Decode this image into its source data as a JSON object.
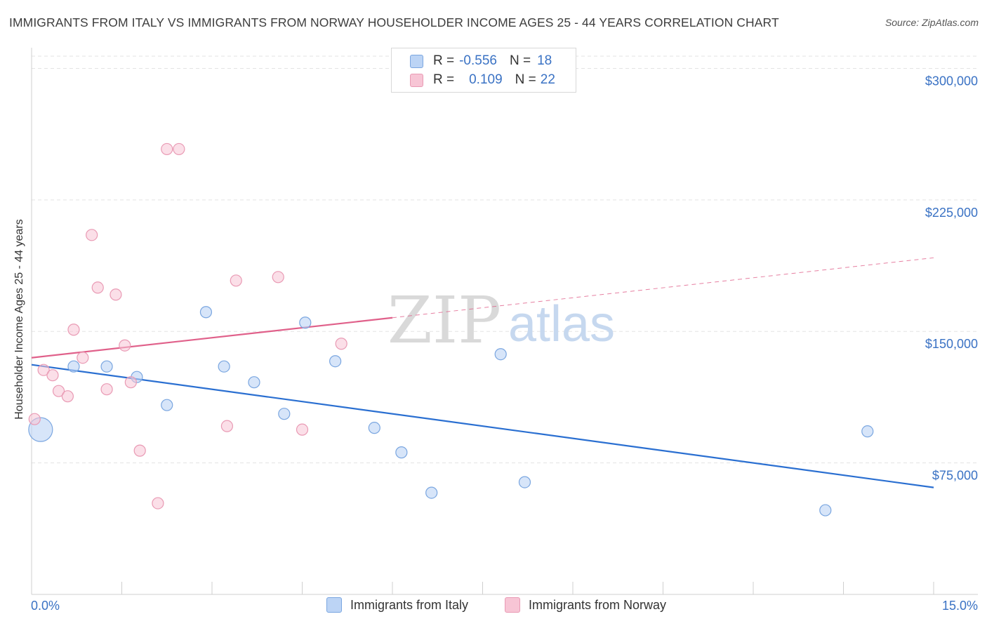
{
  "title": "IMMIGRANTS FROM ITALY VS IMMIGRANTS FROM NORWAY HOUSEHOLDER INCOME AGES 25 - 44 YEARS CORRELATION CHART",
  "source": "Source: ZipAtlas.com",
  "watermark": {
    "zip": "ZIP",
    "atlas": "atlas"
  },
  "legend": {
    "italy": {
      "r_label": "R =",
      "r_value": "-0.556",
      "n_label": "N =",
      "n_value": "18"
    },
    "norway": {
      "r_label": "R =",
      "r_value": "0.109",
      "n_label": "N =",
      "n_value": "22"
    }
  },
  "bottom_legend": {
    "italy": "Immigrants from Italy",
    "norway": "Immigrants from Norway"
  },
  "colors": {
    "italy_fill": "#bcd4f5",
    "italy_stroke": "#7aa6e0",
    "italy_line": "#2a6fd1",
    "norway_fill": "#f7c5d5",
    "norway_stroke": "#e99ab4",
    "norway_line": "#e0608a",
    "axis_text": "#3a72c4",
    "grid": "#e3e3e3"
  },
  "chart_data": {
    "type": "scatter",
    "title": "IMMIGRANTS FROM ITALY VS IMMIGRANTS FROM NORWAY HOUSEHOLDER INCOME AGES 25 - 44 YEARS CORRELATION CHART",
    "xlabel": "",
    "ylabel": "Householder Income Ages 25 - 44 years",
    "xlim": [
      0,
      15
    ],
    "ylim": [
      0,
      307000
    ],
    "x_tick_labels": [
      "0.0%",
      "15.0%"
    ],
    "y_ticks": [
      {
        "value": 75000,
        "label": "$75,000"
      },
      {
        "value": 150000,
        "label": "$150,000"
      },
      {
        "value": 225000,
        "label": "$225,000"
      },
      {
        "value": 300000,
        "label": "$300,000"
      }
    ],
    "x_minor_ticks": [
      1.5,
      3.0,
      4.5,
      6.0,
      7.5,
      9.0,
      10.5,
      12.0,
      13.5,
      15.0
    ],
    "series": [
      {
        "name": "Immigrants from Italy",
        "R": -0.556,
        "N": 18,
        "points": [
          {
            "x": 0.15,
            "y": 94000,
            "big": true
          },
          {
            "x": 0.7,
            "y": 130000
          },
          {
            "x": 1.25,
            "y": 130000
          },
          {
            "x": 1.75,
            "y": 124000
          },
          {
            "x": 2.25,
            "y": 108000
          },
          {
            "x": 2.9,
            "y": 161000
          },
          {
            "x": 3.2,
            "y": 130000
          },
          {
            "x": 3.7,
            "y": 121000
          },
          {
            "x": 4.2,
            "y": 103000
          },
          {
            "x": 4.55,
            "y": 155000
          },
          {
            "x": 5.05,
            "y": 133000
          },
          {
            "x": 5.7,
            "y": 95000
          },
          {
            "x": 6.15,
            "y": 81000
          },
          {
            "x": 6.65,
            "y": 58000
          },
          {
            "x": 7.8,
            "y": 137000
          },
          {
            "x": 8.2,
            "y": 64000
          },
          {
            "x": 13.2,
            "y": 48000
          },
          {
            "x": 13.9,
            "y": 93000
          }
        ],
        "trend": {
          "x0": 0,
          "y0": 131000,
          "x1": 15,
          "y1": 61000,
          "solid_to": 15
        }
      },
      {
        "name": "Immigrants from Norway",
        "R": 0.109,
        "N": 22,
        "points": [
          {
            "x": 0.05,
            "y": 100000
          },
          {
            "x": 0.2,
            "y": 128000
          },
          {
            "x": 0.35,
            "y": 125000
          },
          {
            "x": 0.45,
            "y": 116000
          },
          {
            "x": 0.6,
            "y": 113000
          },
          {
            "x": 0.7,
            "y": 151000
          },
          {
            "x": 0.85,
            "y": 135000
          },
          {
            "x": 1.0,
            "y": 205000
          },
          {
            "x": 1.1,
            "y": 175000
          },
          {
            "x": 1.25,
            "y": 117000
          },
          {
            "x": 1.4,
            "y": 171000
          },
          {
            "x": 1.55,
            "y": 142000
          },
          {
            "x": 1.65,
            "y": 121000
          },
          {
            "x": 1.8,
            "y": 82000
          },
          {
            "x": 2.1,
            "y": 52000
          },
          {
            "x": 2.25,
            "y": 254000
          },
          {
            "x": 2.45,
            "y": 254000
          },
          {
            "x": 3.25,
            "y": 96000
          },
          {
            "x": 3.4,
            "y": 179000
          },
          {
            "x": 4.1,
            "y": 181000
          },
          {
            "x": 4.5,
            "y": 94000
          },
          {
            "x": 5.15,
            "y": 143000
          }
        ],
        "trend": {
          "x0": 0,
          "y0": 135000,
          "x1": 15,
          "y1": 192000,
          "solid_to": 6.0
        }
      }
    ]
  }
}
